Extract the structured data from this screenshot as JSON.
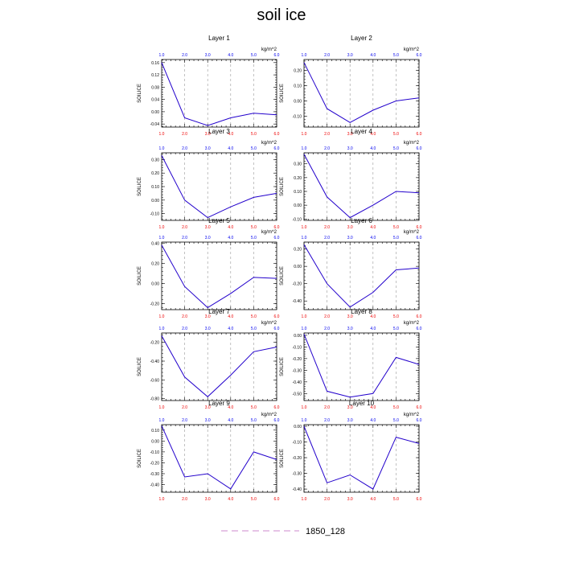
{
  "title": "soil ice",
  "chart_data": [
    {
      "type": "line",
      "title": "Layer 1",
      "ylabel": "SOILICE",
      "units": "kg/m^2",
      "x": [
        1,
        2,
        3,
        4,
        5,
        6
      ],
      "values": [
        0.16,
        -0.02,
        -0.045,
        -0.02,
        -0.005,
        -0.01
      ],
      "ylim": [
        -0.05,
        0.17
      ],
      "yticks": [
        -0.04,
        0.0,
        0.04,
        0.08,
        0.12,
        0.16
      ],
      "ytick_labels": [
        "-0.04",
        "0.00",
        "0.04",
        "0.08",
        "0.12",
        "0.16"
      ]
    },
    {
      "type": "line",
      "title": "Layer 2",
      "ylabel": "SOILICE",
      "units": "kg/m^2",
      "x": [
        1,
        2,
        3,
        4,
        5,
        6
      ],
      "values": [
        0.25,
        -0.05,
        -0.14,
        -0.06,
        0.0,
        0.02
      ],
      "ylim": [
        -0.17,
        0.27
      ],
      "yticks": [
        -0.1,
        0.0,
        0.1,
        0.2
      ],
      "ytick_labels": [
        "-0.10",
        "0.00",
        "0.10",
        "0.20"
      ]
    },
    {
      "type": "line",
      "title": "Layer 3",
      "ylabel": "SOILICE",
      "units": "kg/m^2",
      "x": [
        1,
        2,
        3,
        4,
        5,
        6
      ],
      "values": [
        0.33,
        0.0,
        -0.13,
        -0.05,
        0.02,
        0.05
      ],
      "ylim": [
        -0.15,
        0.35
      ],
      "yticks": [
        -0.1,
        0.0,
        0.1,
        0.2,
        0.3
      ],
      "ytick_labels": [
        "-0.10",
        "0.00",
        "0.10",
        "0.20",
        "0.30"
      ]
    },
    {
      "type": "line",
      "title": "Layer 4",
      "ylabel": "SOILICE",
      "units": "kg/m^2",
      "x": [
        1,
        2,
        3,
        4,
        5,
        6
      ],
      "values": [
        0.37,
        0.06,
        -0.09,
        0.0,
        0.1,
        0.09
      ],
      "ylim": [
        -0.11,
        0.38
      ],
      "yticks": [
        -0.1,
        0.0,
        0.1,
        0.2,
        0.3
      ],
      "ytick_labels": [
        "-0.10",
        "0.00",
        "0.10",
        "0.20",
        "0.30"
      ]
    },
    {
      "type": "line",
      "title": "Layer 5",
      "ylabel": "SOILICE",
      "units": "kg/m^2",
      "x": [
        1,
        2,
        3,
        4,
        5,
        6
      ],
      "values": [
        0.38,
        -0.03,
        -0.24,
        -0.1,
        0.06,
        0.05
      ],
      "ylim": [
        -0.26,
        0.41
      ],
      "yticks": [
        -0.2,
        0.0,
        0.2,
        0.4
      ],
      "ytick_labels": [
        "-0.20",
        "0.00",
        "0.20",
        "0.40"
      ]
    },
    {
      "type": "line",
      "title": "Layer 6",
      "ylabel": "SOILICE",
      "units": "kg/m^2",
      "x": [
        1,
        2,
        3,
        4,
        5,
        6
      ],
      "values": [
        0.25,
        -0.2,
        -0.47,
        -0.3,
        -0.04,
        -0.02
      ],
      "ylim": [
        -0.5,
        0.28
      ],
      "yticks": [
        -0.4,
        -0.2,
        0.0,
        0.2
      ],
      "ytick_labels": [
        "-0.40",
        "-0.20",
        "0.00",
        "0.20"
      ]
    },
    {
      "type": "line",
      "title": "Layer 7",
      "ylabel": "SOILICE",
      "units": "kg/m^2",
      "x": [
        1,
        2,
        3,
        4,
        5,
        6
      ],
      "values": [
        -0.13,
        -0.57,
        -0.78,
        -0.55,
        -0.3,
        -0.25
      ],
      "ylim": [
        -0.82,
        -0.1
      ],
      "yticks": [
        -0.8,
        -0.6,
        -0.4,
        -0.2
      ],
      "ytick_labels": [
        "-0.80",
        "-0.60",
        "-0.40",
        "-0.20"
      ]
    },
    {
      "type": "line",
      "title": "Layer 8",
      "ylabel": "SOILICE",
      "units": "kg/m^2",
      "x": [
        1,
        2,
        3,
        4,
        5,
        6
      ],
      "values": [
        0.01,
        -0.48,
        -0.53,
        -0.5,
        -0.19,
        -0.25
      ],
      "ylim": [
        -0.56,
        0.02
      ],
      "yticks": [
        -0.5,
        -0.4,
        -0.3,
        -0.2,
        -0.1,
        0.0
      ],
      "ytick_labels": [
        "-0.50",
        "-0.40",
        "-0.30",
        "-0.20",
        "-0.10",
        "0.00"
      ]
    },
    {
      "type": "line",
      "title": "Layer 9",
      "ylabel": "SOILICE",
      "units": "kg/m^2",
      "x": [
        1,
        2,
        3,
        4,
        5,
        6
      ],
      "values": [
        0.14,
        -0.33,
        -0.3,
        -0.44,
        -0.1,
        -0.17
      ],
      "ylim": [
        -0.47,
        0.15
      ],
      "yticks": [
        -0.4,
        -0.3,
        -0.2,
        -0.1,
        0.0,
        0.1
      ],
      "ytick_labels": [
        "-0.40",
        "-0.30",
        "-0.20",
        "-0.10",
        "0.00",
        "0.10"
      ]
    },
    {
      "type": "line",
      "title": "Layer 10",
      "ylabel": "SOILICE",
      "units": "kg/m^2",
      "x": [
        1,
        2,
        3,
        4,
        5,
        6
      ],
      "values": [
        0.0,
        -0.36,
        -0.31,
        -0.4,
        -0.07,
        -0.11
      ],
      "ylim": [
        -0.42,
        0.01
      ],
      "yticks": [
        -0.4,
        -0.3,
        -0.2,
        -0.1,
        0.0
      ],
      "ytick_labels": [
        "-0.40",
        "-0.30",
        "-0.20",
        "-0.10",
        "0.00"
      ]
    }
  ],
  "x_tick_labels": [
    "1.0",
    "2.0",
    "3.0",
    "4.0",
    "5.0",
    "6.0"
  ],
  "legend": {
    "label": "1850_128",
    "color": "#cc88cc"
  },
  "colors": {
    "line": "#2200cc",
    "bottom_ticks": "#ee0000",
    "top_ticks": "#0000ee",
    "gridline": "#999999",
    "axis": "#000000"
  }
}
